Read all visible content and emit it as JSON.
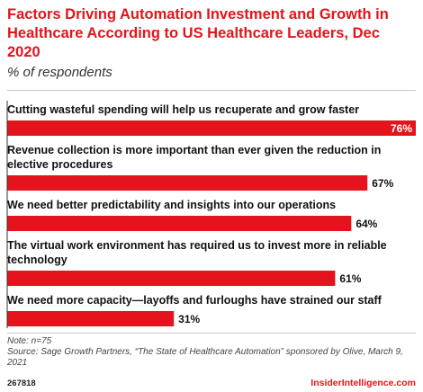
{
  "title": "Factors Driving Automation Investment and Growth in Healthcare According to US Healthcare Leaders, Dec 2020",
  "subtitle": "% of respondents",
  "footer": {
    "note": "Note: n=75",
    "source": "Source: Sage Growth Partners, “The State of Healthcare Automation” sponsored by Olive, March 9, 2021",
    "chart_id": "267818",
    "brand": "InsiderIntelligence.com"
  },
  "colors": {
    "bar": "#e3141b",
    "title": "#e3141b",
    "axis": "#333333"
  },
  "chart_data": {
    "type": "bar",
    "orientation": "horizontal",
    "categories": [
      [
        "Cutting wasteful spending will help us recuperate and grow faster"
      ],
      [
        "Revenue collection is more important than ever given the reduction in",
        "elective procedures"
      ],
      [
        "We need better predictability and insights into our operations"
      ],
      [
        "The virtual work environment has required us to invest more in reliable",
        "technology"
      ],
      [
        "We need more capacity—layoffs and furloughs have strained our staff"
      ]
    ],
    "values": [
      76,
      67,
      64,
      61,
      31
    ],
    "value_labels": [
      "76%",
      "67%",
      "64%",
      "61%",
      "31%"
    ],
    "xlim": [
      0,
      76
    ],
    "grid": false
  }
}
